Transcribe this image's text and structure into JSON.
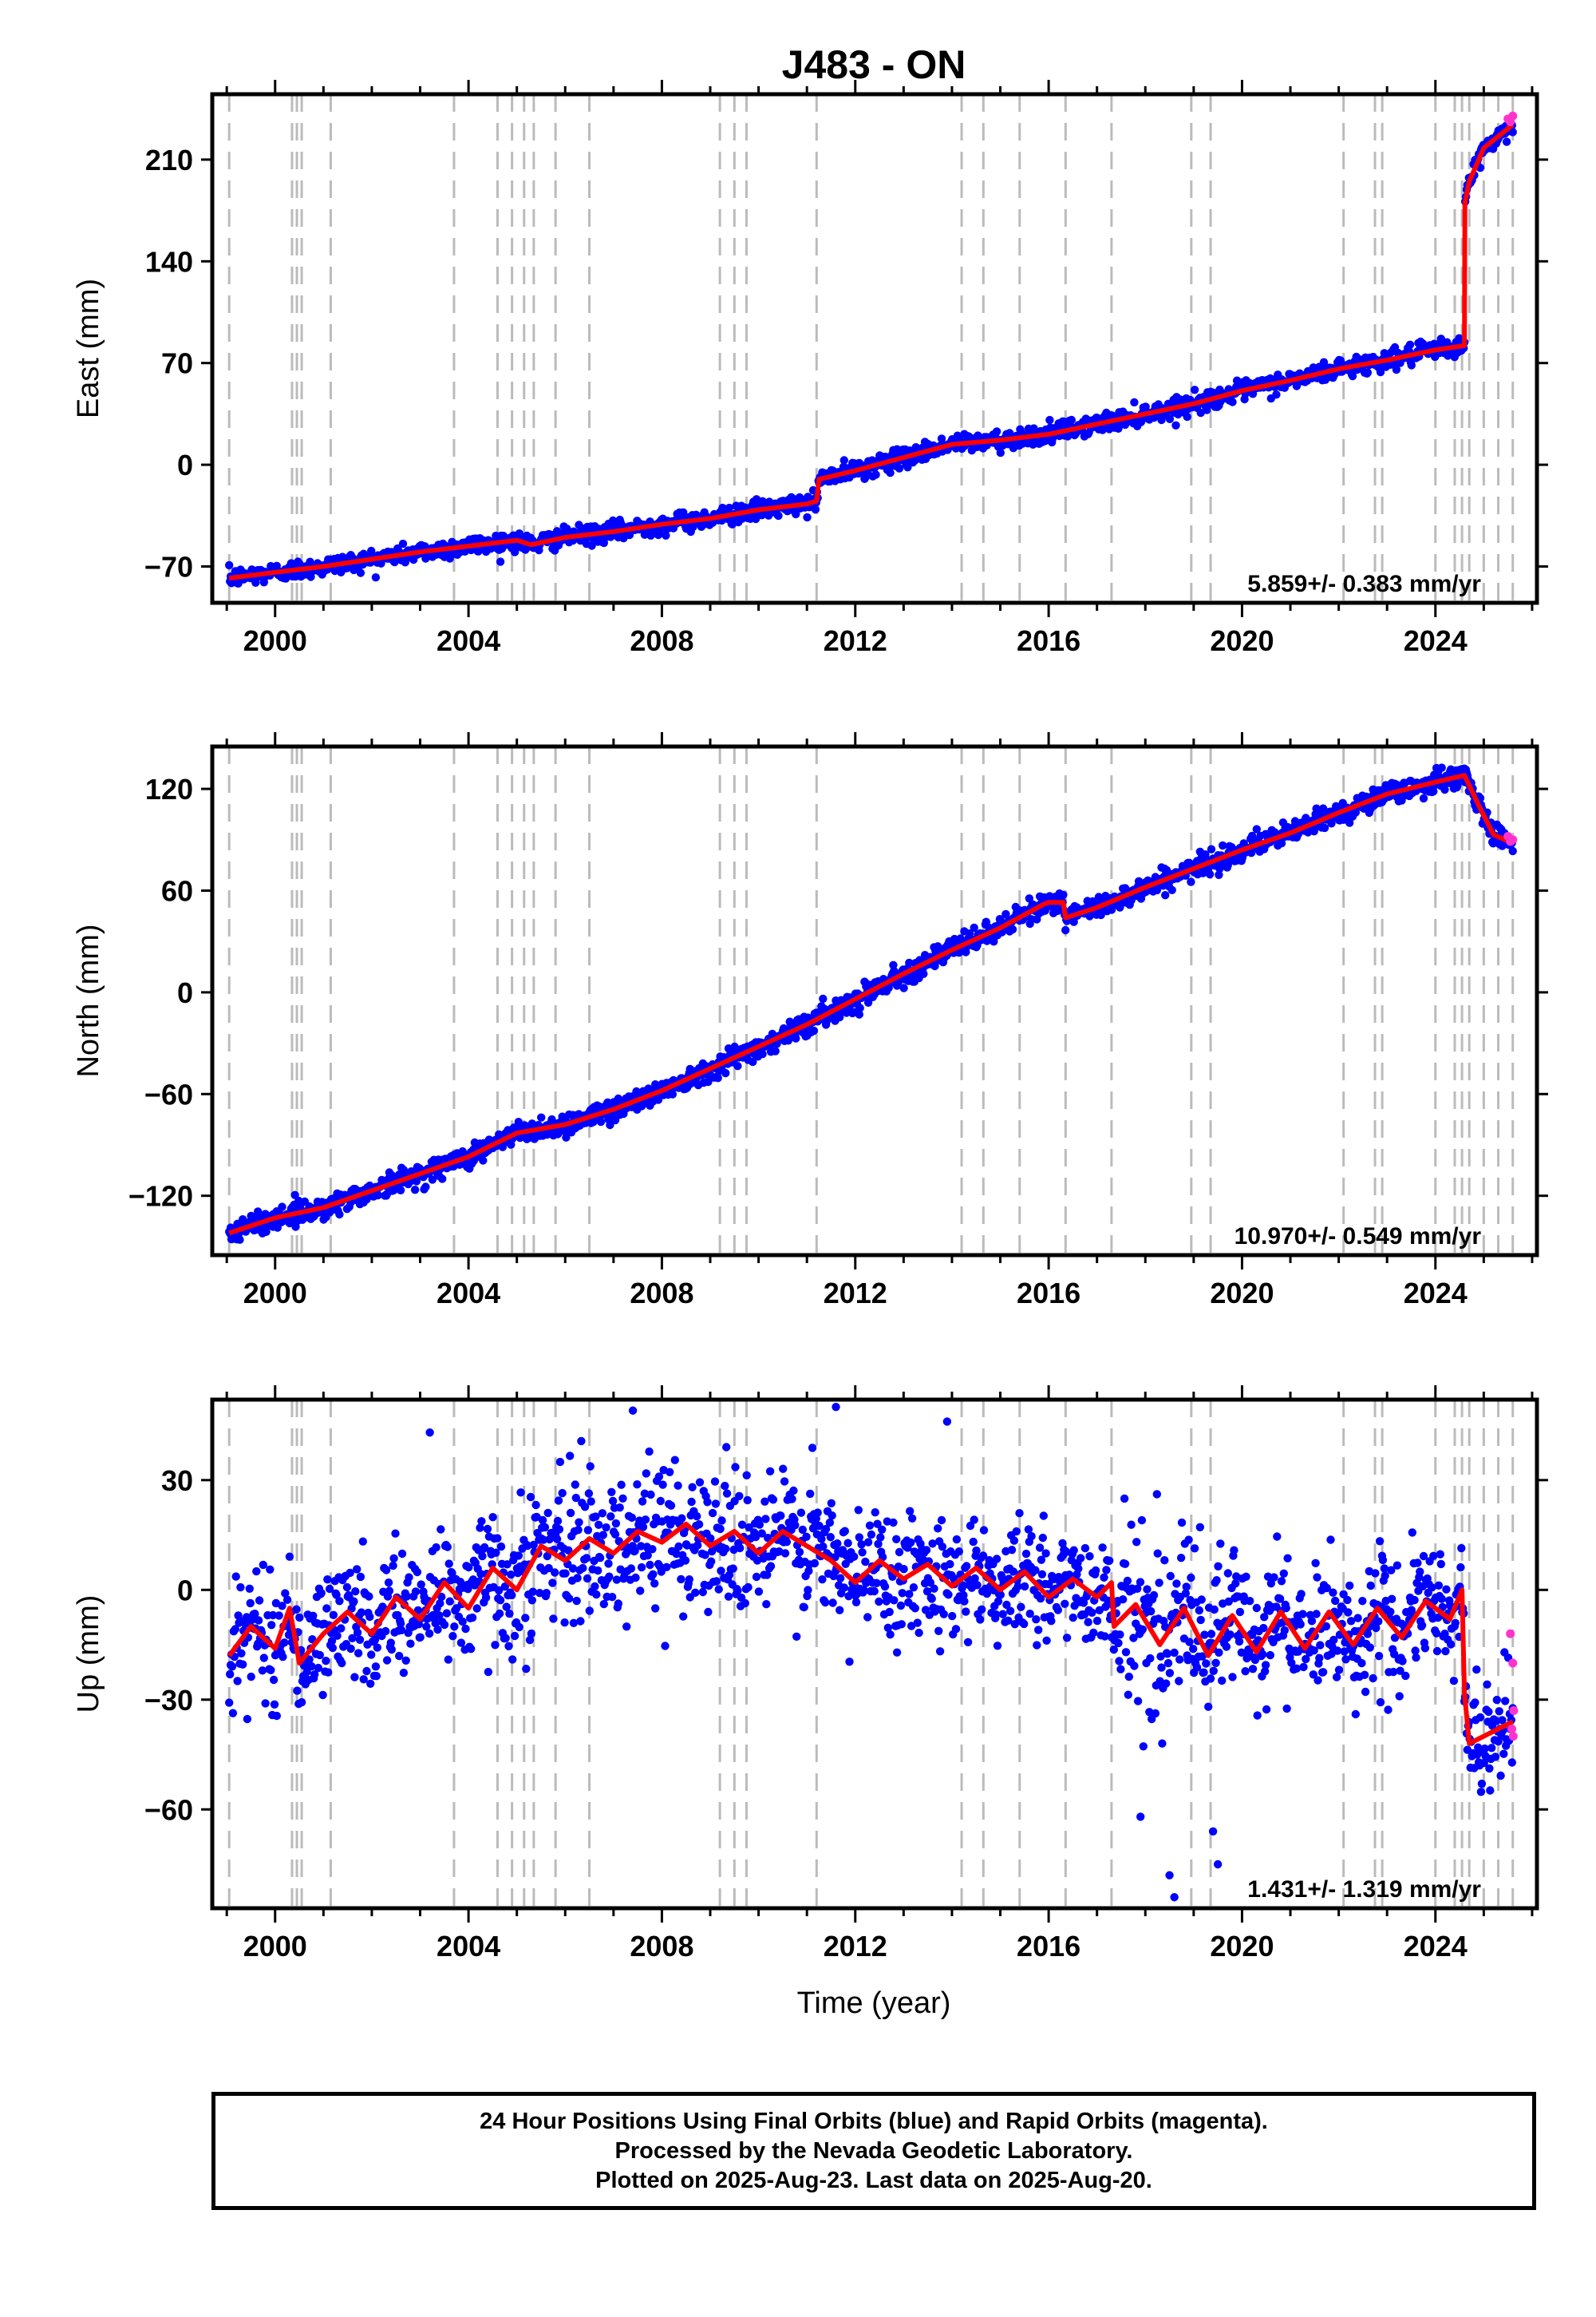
{
  "title": "J483 - ON",
  "xlabel": "Time (year)",
  "colors": {
    "final": "#0000ff",
    "rapid": "#ff33cc",
    "model": "#ff0000",
    "event_lines": "#bbbbbb"
  },
  "chart_data": [
    {
      "type": "scatter",
      "ylabel": "East (mm)",
      "rate_text": "5.859+/- 0.383 mm/yr",
      "xlim": [
        1998.7,
        2026.1
      ],
      "ylim": [
        -95,
        255
      ],
      "yticks": [
        -70,
        0,
        70,
        140,
        210
      ],
      "ytick_labels": [
        "−70",
        "0",
        "70",
        "140",
        "210"
      ],
      "xticks": [
        2000,
        2004,
        2008,
        2012,
        2016,
        2020,
        2024
      ],
      "series": [
        {
          "role": "model",
          "x": [
            1999.05,
            2000.0,
            2001.0,
            2002.0,
            2003.0,
            2004.0,
            2005.0,
            2005.3,
            2006.0,
            2007.0,
            2008.0,
            2009.0,
            2010.0,
            2011.0,
            2011.2,
            2011.25,
            2012.0,
            2013.0,
            2014.0,
            2015.0,
            2016.0,
            2017.0,
            2018.0,
            2019.0,
            2020.0,
            2021.0,
            2022.0,
            2023.0,
            2024.0,
            2024.6,
            2024.61,
            2024.7,
            2025.0,
            2025.6
          ],
          "y": [
            -78,
            -74,
            -70,
            -65,
            -60,
            -56,
            -52,
            -55,
            -50,
            -46,
            -41,
            -37,
            -31,
            -27,
            -25,
            -10,
            -4,
            5,
            14,
            17,
            21,
            28,
            35,
            42,
            51,
            58,
            66,
            72,
            79,
            82,
            180,
            195,
            218,
            234
          ]
        }
      ],
      "outliers": [],
      "rapid_points": {
        "x": [
          2025.5,
          2025.55,
          2025.6
        ],
        "y": [
          238,
          236,
          240
        ]
      }
    },
    {
      "type": "scatter",
      "ylabel": "North (mm)",
      "rate_text": "10.970+/- 0.549 mm/yr",
      "xlim": [
        1998.7,
        2026.1
      ],
      "ylim": [
        -155,
        145
      ],
      "yticks": [
        -120,
        -60,
        0,
        60,
        120
      ],
      "ytick_labels": [
        "−120",
        "−60",
        "0",
        "60",
        "120"
      ],
      "xticks": [
        2000,
        2004,
        2008,
        2012,
        2016,
        2020,
        2024
      ],
      "series": [
        {
          "role": "model",
          "x": [
            1999.05,
            2000.0,
            2001.0,
            2002.0,
            2003.0,
            2004.0,
            2005.0,
            2006.0,
            2007.0,
            2008.0,
            2009.0,
            2010.0,
            2011.0,
            2012.0,
            2013.0,
            2014.0,
            2015.0,
            2015.9,
            2016.0,
            2016.3,
            2016.35,
            2017.0,
            2018.0,
            2019.0,
            2020.0,
            2021.0,
            2022.0,
            2023.0,
            2024.0,
            2024.6,
            2024.9,
            2025.2,
            2025.6
          ],
          "y": [
            -142,
            -133,
            -127,
            -117,
            -107,
            -97,
            -83,
            -78,
            -69,
            -58,
            -45,
            -32,
            -19,
            -4,
            11,
            25,
            38,
            52,
            53,
            53,
            44,
            50,
            62,
            73,
            84,
            94,
            106,
            117,
            124,
            128,
            110,
            93,
            88
          ]
        }
      ],
      "outliers": [],
      "rapid_points": {
        "x": [
          2025.5,
          2025.55,
          2025.6
        ],
        "y": [
          92,
          89,
          90
        ]
      }
    },
    {
      "type": "scatter",
      "ylabel": "Up (mm)",
      "rate_text": "1.431+/- 1.319 mm/yr",
      "xlim": [
        1998.7,
        2026.1
      ],
      "ylim": [
        -87,
        52
      ],
      "yticks": [
        -60,
        -30,
        0,
        30
      ],
      "ytick_labels": [
        "−60",
        "−30",
        "0",
        "30"
      ],
      "xticks": [
        2000,
        2004,
        2008,
        2012,
        2016,
        2020,
        2024
      ],
      "series": [
        {
          "role": "model",
          "x": [
            1999.05,
            1999.5,
            2000.0,
            2000.3,
            2000.5,
            2001.0,
            2001.5,
            2002.0,
            2002.5,
            2003.0,
            2003.5,
            2004.0,
            2004.5,
            2005.0,
            2005.5,
            2006.0,
            2006.5,
            2007.0,
            2007.5,
            2008.0,
            2008.5,
            2009.0,
            2009.5,
            2010.0,
            2010.5,
            2011.0,
            2011.5,
            2012.0,
            2012.5,
            2013.0,
            2013.5,
            2014.0,
            2014.5,
            2015.0,
            2015.5,
            2016.0,
            2016.5,
            2017.0,
            2017.3,
            2017.35,
            2017.8,
            2018.3,
            2018.8,
            2019.3,
            2019.8,
            2020.3,
            2020.8,
            2021.3,
            2021.8,
            2022.3,
            2022.8,
            2023.3,
            2023.8,
            2024.3,
            2024.55,
            2024.6,
            2024.7,
            2025.0,
            2025.3,
            2025.6
          ],
          "y": [
            -18,
            -10,
            -16,
            -5,
            -20,
            -12,
            -6,
            -12,
            -2,
            -8,
            2,
            -5,
            6,
            0,
            12,
            8,
            14,
            10,
            16,
            13,
            18,
            12,
            16,
            10,
            16,
            12,
            8,
            2,
            8,
            3,
            7,
            1,
            6,
            0,
            5,
            -2,
            3,
            -2,
            2,
            -10,
            -4,
            -15,
            -5,
            -18,
            -7,
            -17,
            -6,
            -16,
            -6,
            -15,
            -5,
            -13,
            -3,
            -8,
            0,
            -28,
            -42,
            -40,
            -38,
            -36
          ]
        }
      ],
      "outliers": [
        {
          "x": 2003.2,
          "y": 43
        },
        {
          "x": 2007.4,
          "y": 49
        },
        {
          "x": 2011.6,
          "y": 50
        },
        {
          "x": 2013.9,
          "y": 46
        },
        {
          "x": 2017.9,
          "y": -62
        },
        {
          "x": 2018.5,
          "y": -78
        },
        {
          "x": 2018.6,
          "y": -84
        },
        {
          "x": 2019.4,
          "y": -66
        },
        {
          "x": 2019.5,
          "y": -75
        }
      ],
      "rapid_points": {
        "x": [
          2025.55,
          2025.6,
          2025.62,
          2025.58,
          2025.61
        ],
        "y": [
          -12,
          -20,
          -33,
          -38,
          -40
        ]
      }
    }
  ],
  "event_years": [
    1999.05,
    2000.35,
    2000.45,
    2000.55,
    2001.15,
    2003.7,
    2004.6,
    2004.9,
    2005.15,
    2005.35,
    2005.8,
    2006.5,
    2009.2,
    2009.5,
    2009.75,
    2011.2,
    2014.2,
    2014.65,
    2015.4,
    2016.35,
    2017.3,
    2018.95,
    2019.35,
    2022.1,
    2022.75,
    2022.9,
    2024.0,
    2024.4,
    2024.55,
    2024.7,
    2025.0,
    2025.3,
    2025.6
  ],
  "footer": {
    "line1": "24 Hour Positions Using Final Orbits (blue) and Rapid Orbits (magenta).",
    "line2": "Processed by the Nevada Geodetic Laboratory.",
    "line3": "Plotted on 2025-Aug-23. Last data on 2025-Aug-20."
  }
}
